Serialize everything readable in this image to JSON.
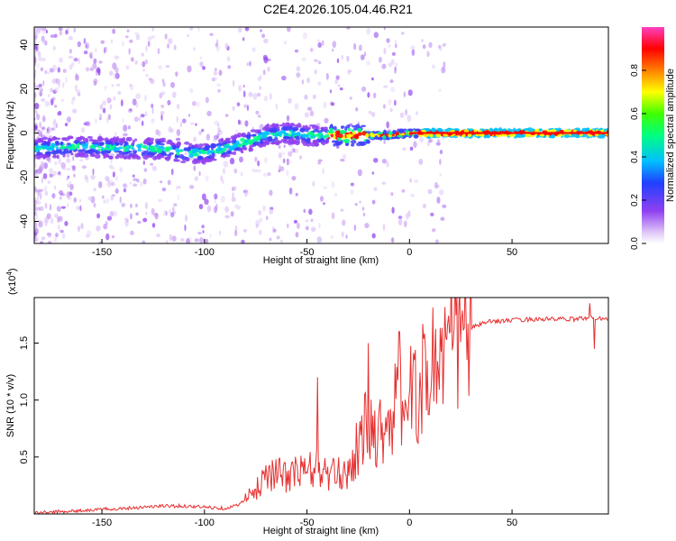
{
  "figure": {
    "title": "C2E4.2026.105.04.46.R21"
  },
  "chart_data": [
    {
      "type": "heatmap",
      "title": "C2E4.2026.105.04.46.R21",
      "xlabel": "Height of straight line (km)",
      "ylabel": "Frequency (Hz)",
      "xlim": [
        -183,
        97
      ],
      "ylim": [
        -50,
        48
      ],
      "xticks": [
        -150,
        -100,
        -50,
        0,
        50
      ],
      "xtick_labels": [
        "-150",
        "-100",
        "-50",
        "0",
        "50"
      ],
      "yticks": [
        -40,
        -20,
        0,
        20,
        40
      ],
      "ytick_labels": [
        "-40",
        "-20",
        "0",
        "20",
        "40"
      ],
      "ridge": {
        "description": "Dominant spectral ridge (frequency in Hz vs height in km)",
        "x": [
          -183,
          -160,
          -140,
          -120,
          -110,
          -100,
          -90,
          -80,
          -70,
          -60,
          -50,
          -40,
          -30,
          -20,
          -10,
          0,
          20,
          40,
          60,
          80,
          97
        ],
        "y": [
          -7,
          -6,
          -7,
          -7,
          -9,
          -9,
          -7,
          -4,
          -1,
          0,
          -1,
          -1,
          -1,
          -1,
          -1,
          0,
          0,
          0,
          0,
          0,
          0
        ]
      },
      "colorbar": {
        "label": "Normalized spectral amplitude",
        "range": [
          0,
          1
        ],
        "ticks": [
          0.0,
          0.2,
          0.4,
          0.6,
          0.8
        ],
        "tick_labels": [
          "0.0",
          "0.2",
          "0.4",
          "0.6",
          "0.8"
        ],
        "colors": [
          "#ffffff",
          "#e0c8f8",
          "#c090f0",
          "#9040f0",
          "#4040ff",
          "#00c0ff",
          "#00ff80",
          "#40ff00",
          "#ffff00",
          "#ff8000",
          "#ff0000",
          "#ff40c0"
        ]
      }
    },
    {
      "type": "line",
      "xlabel": "Height of straight line (km)",
      "ylabel": "SNR (10 * v/v)",
      "scale_label": "(x10",
      "scale_exponent": "4",
      "scale_close": ")",
      "xlim": [
        -183,
        97
      ],
      "ylim": [
        0,
        1.9
      ],
      "xticks": [
        -150,
        -100,
        -50,
        0,
        50
      ],
      "xtick_labels": [
        "-150",
        "-100",
        "-50",
        "0",
        "50"
      ],
      "yticks": [
        0.5,
        1.0,
        1.5
      ],
      "ytick_labels": [
        "0.5",
        "1.0",
        "1.5"
      ],
      "color": "#e83030",
      "series": [
        {
          "name": "SNR",
          "x": [
            -183,
            -170,
            -160,
            -150,
            -140,
            -130,
            -120,
            -110,
            -100,
            -90,
            -85,
            -80,
            -75,
            -72,
            -70,
            -65,
            -60,
            -55,
            -50,
            -45,
            -40,
            -35,
            -30,
            -25,
            -22,
            -20,
            -15,
            -10,
            -5,
            0,
            5,
            10,
            15,
            20,
            25,
            30,
            35,
            40,
            50,
            60,
            70,
            80,
            85,
            88,
            90,
            92,
            97
          ],
          "y": [
            0.01,
            0.02,
            0.03,
            0.04,
            0.05,
            0.06,
            0.07,
            0.07,
            0.06,
            0.05,
            0.07,
            0.12,
            0.2,
            0.3,
            0.38,
            0.35,
            0.33,
            0.36,
            0.38,
            0.4,
            0.34,
            0.34,
            0.38,
            0.6,
            0.75,
            0.75,
            0.72,
            0.84,
            0.98,
            1.02,
            1.1,
            1.3,
            1.4,
            1.48,
            1.57,
            1.63,
            1.67,
            1.69,
            1.7,
            1.71,
            1.71,
            1.71,
            1.72,
            1.72,
            1.72,
            1.72,
            1.72
          ]
        }
      ],
      "annotations": {
        "peaks": [
          {
            "x": -20,
            "y": 1.5
          },
          {
            "x": -5,
            "y": 1.6
          },
          {
            "x": -45,
            "y": 1.2
          },
          {
            "x": 88,
            "y": 1.85
          },
          {
            "x": 90,
            "y": 1.45
          }
        ]
      }
    }
  ]
}
